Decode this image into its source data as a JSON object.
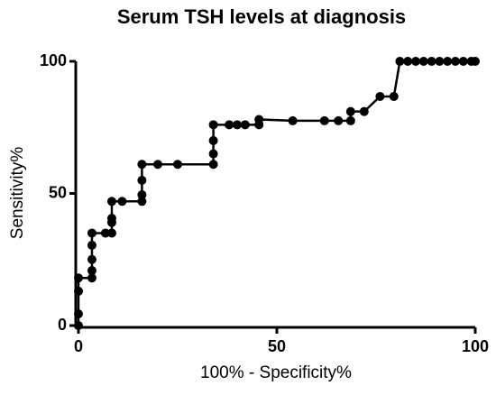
{
  "chart_data": {
    "type": "line",
    "title": "Serum TSH levels at diagnosis",
    "xlabel": "100% - Specificity%",
    "ylabel": "Sensitivity%",
    "x": [
      0,
      0,
      0,
      0,
      3.4,
      3.4,
      3.4,
      3.4,
      3.4,
      6.8,
      8.4,
      8.4,
      8.4,
      8.4,
      11,
      16,
      16,
      16,
      16,
      20,
      25,
      34,
      34,
      34,
      34,
      38,
      40,
      42,
      45.5,
      45.5,
      54,
      62,
      65.5,
      68.6,
      68.6,
      72,
      76,
      79.5,
      81,
      83,
      85,
      87,
      89,
      91,
      93,
      95,
      97,
      99,
      100
    ],
    "values": [
      0,
      4.4,
      13,
      18,
      18,
      20.8,
      25,
      30.4,
      35,
      35,
      35,
      39,
      40.6,
      47,
      47,
      47,
      49.5,
      55,
      61,
      61,
      61,
      61,
      65,
      70,
      76,
      76,
      76,
      76,
      76,
      78,
      77.5,
      77.5,
      77.5,
      77.5,
      81,
      81,
      86.7,
      86.7,
      100,
      100,
      100,
      100,
      100,
      100,
      100,
      100,
      100,
      100,
      100
    ],
    "color": "#000000",
    "xlim": [
      0,
      100
    ],
    "xticks": [
      0,
      50,
      100
    ],
    "ylim": [
      0,
      100
    ],
    "yticks": [
      0,
      50,
      100
    ]
  }
}
